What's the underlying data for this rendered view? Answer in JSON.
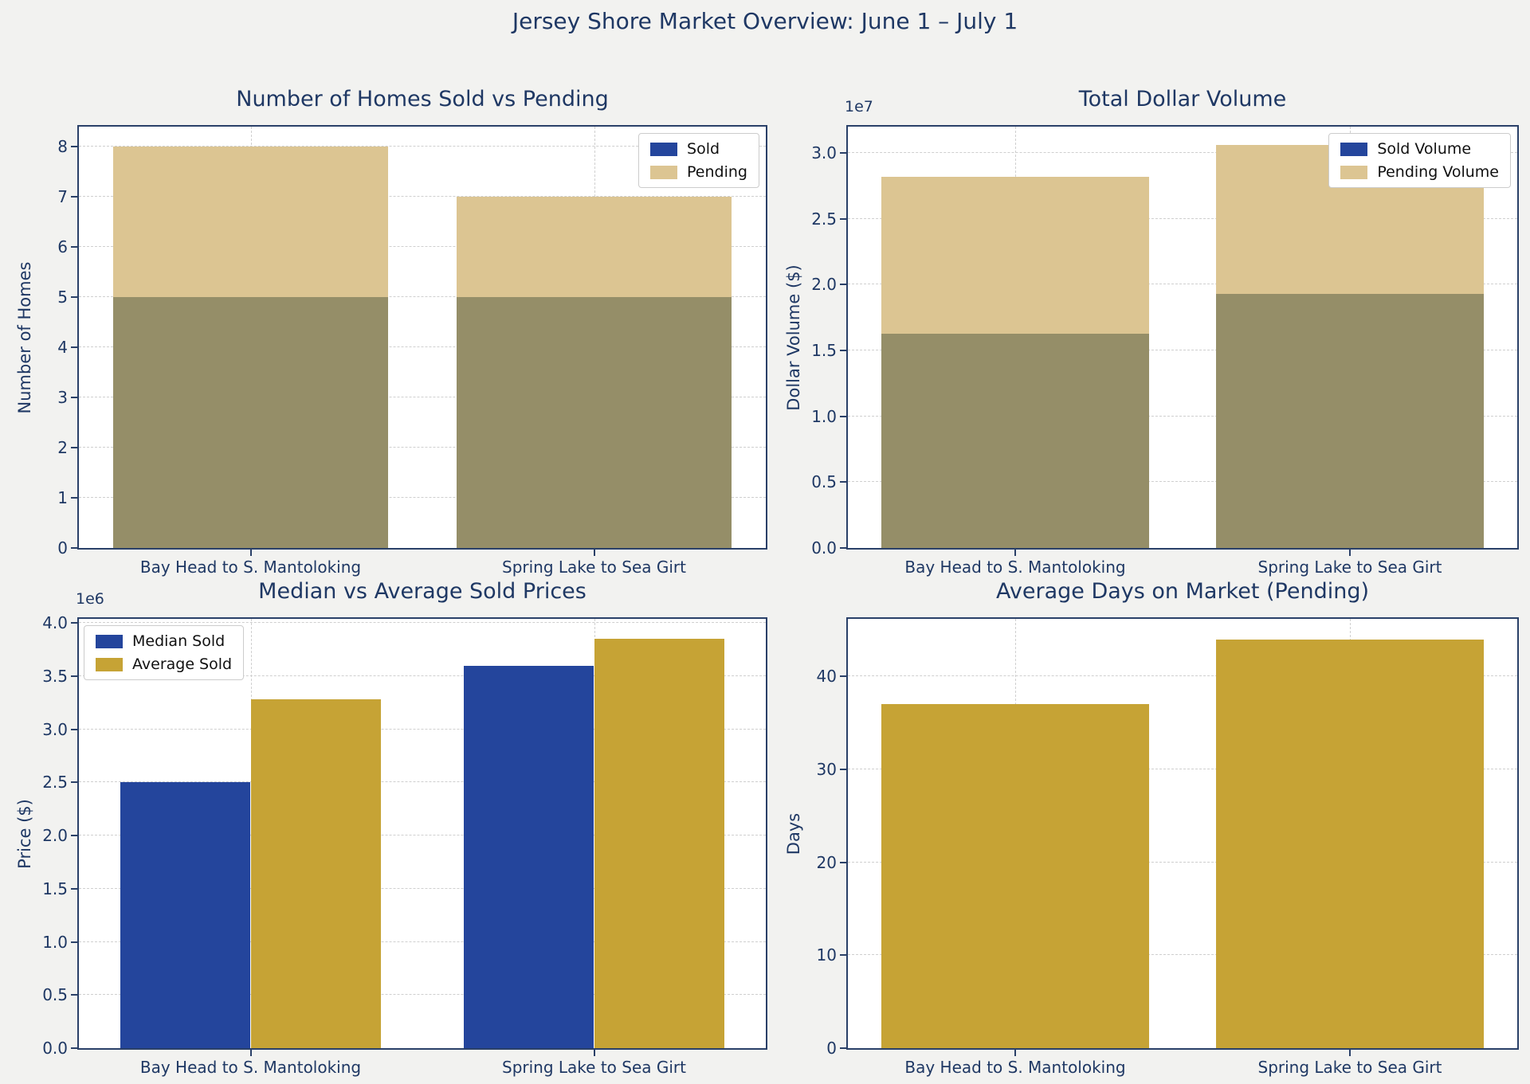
{
  "figure_title": "Jersey Shore Market Overview: June 1 – July 1",
  "colors": {
    "navy": "#24459c",
    "tan": "#dcc592",
    "overlap": "#958e68",
    "gold": "#c6a335",
    "background": "#f2f2f0",
    "plot_bg": "#ffffff",
    "spine": "#2a4068",
    "text": "#1f3864",
    "grid": "#cfcfcf",
    "legend_text": "#111111",
    "legend_border": "#cccccc"
  },
  "chart_data": [
    {
      "id": "homes-sold-vs-pending",
      "type": "bar",
      "mode": "overlay",
      "title": "Number of Homes Sold vs Pending",
      "xlabel": "",
      "ylabel": "Number of Homes",
      "offset_text": "",
      "categories": [
        "Bay Head to S. Mantoloking",
        "Spring Lake to Sea Girt"
      ],
      "series": [
        {
          "name": "Sold",
          "color": "navy",
          "values": [
            5,
            5
          ]
        },
        {
          "name": "Pending",
          "color": "tan",
          "values": [
            8,
            7
          ]
        }
      ],
      "ylim": [
        0,
        8.4
      ],
      "ytick_values": [
        0,
        1,
        2,
        3,
        4,
        5,
        6,
        7,
        8
      ],
      "ytick_labels": [
        "0",
        "1",
        "2",
        "3",
        "4",
        "5",
        "6",
        "7",
        "8"
      ],
      "grid": true,
      "legend": {
        "position": "top-right",
        "entries": [
          {
            "label": "Sold",
            "color": "navy"
          },
          {
            "label": "Pending",
            "color": "tan"
          }
        ]
      }
    },
    {
      "id": "total-dollar-volume",
      "type": "bar",
      "mode": "overlay",
      "title": "Total Dollar Volume",
      "xlabel": "",
      "ylabel": "Dollar Volume ($)",
      "offset_text": "1e7",
      "categories": [
        "Bay Head to S. Mantoloking",
        "Spring Lake to Sea Girt"
      ],
      "series": [
        {
          "name": "Sold Volume",
          "color": "navy",
          "values": [
            16300000,
            19300000
          ]
        },
        {
          "name": "Pending Volume",
          "color": "tan",
          "values": [
            28200000,
            30600000
          ]
        }
      ],
      "ylim": [
        0,
        32000000
      ],
      "ytick_values": [
        0,
        5000000,
        10000000,
        15000000,
        20000000,
        25000000,
        30000000
      ],
      "ytick_labels": [
        "0.0",
        "0.5",
        "1.0",
        "1.5",
        "2.0",
        "2.5",
        "3.0"
      ],
      "grid": true,
      "legend": {
        "position": "top-right",
        "entries": [
          {
            "label": "Sold Volume",
            "color": "navy"
          },
          {
            "label": "Pending Volume",
            "color": "tan"
          }
        ]
      }
    },
    {
      "id": "median-vs-average-sold-prices",
      "type": "bar",
      "mode": "grouped",
      "title": "Median vs Average Sold Prices",
      "xlabel": "",
      "ylabel": "Price ($)",
      "offset_text": "1e6",
      "categories": [
        "Bay Head to S. Mantoloking",
        "Spring Lake to Sea Girt"
      ],
      "series": [
        {
          "name": "Median Sold",
          "color": "navy",
          "values": [
            2500000,
            3600000
          ]
        },
        {
          "name": "Average Sold",
          "color": "gold",
          "values": [
            3280000,
            3850000
          ]
        }
      ],
      "ylim": [
        0,
        4040000
      ],
      "ytick_values": [
        0,
        500000,
        1000000,
        1500000,
        2000000,
        2500000,
        3000000,
        3500000,
        4000000
      ],
      "ytick_labels": [
        "0.0",
        "0.5",
        "1.0",
        "1.5",
        "2.0",
        "2.5",
        "3.0",
        "3.5",
        "4.0"
      ],
      "grid": true,
      "legend": {
        "position": "top-left",
        "entries": [
          {
            "label": "Median Sold",
            "color": "navy"
          },
          {
            "label": "Average Sold",
            "color": "gold"
          }
        ]
      }
    },
    {
      "id": "average-days-on-market-pending",
      "type": "bar",
      "mode": "single",
      "title": "Average Days on Market (Pending)",
      "xlabel": "",
      "ylabel": "Days",
      "offset_text": "",
      "categories": [
        "Bay Head to S. Mantoloking",
        "Spring Lake to Sea Girt"
      ],
      "series": [
        {
          "name": "Average Days on Market",
          "color": "gold",
          "values": [
            37,
            44
          ]
        }
      ],
      "ylim": [
        0,
        46.2
      ],
      "ytick_values": [
        0,
        10,
        20,
        30,
        40
      ],
      "ytick_labels": [
        "0",
        "10",
        "20",
        "30",
        "40"
      ],
      "grid": true,
      "legend": null
    }
  ]
}
